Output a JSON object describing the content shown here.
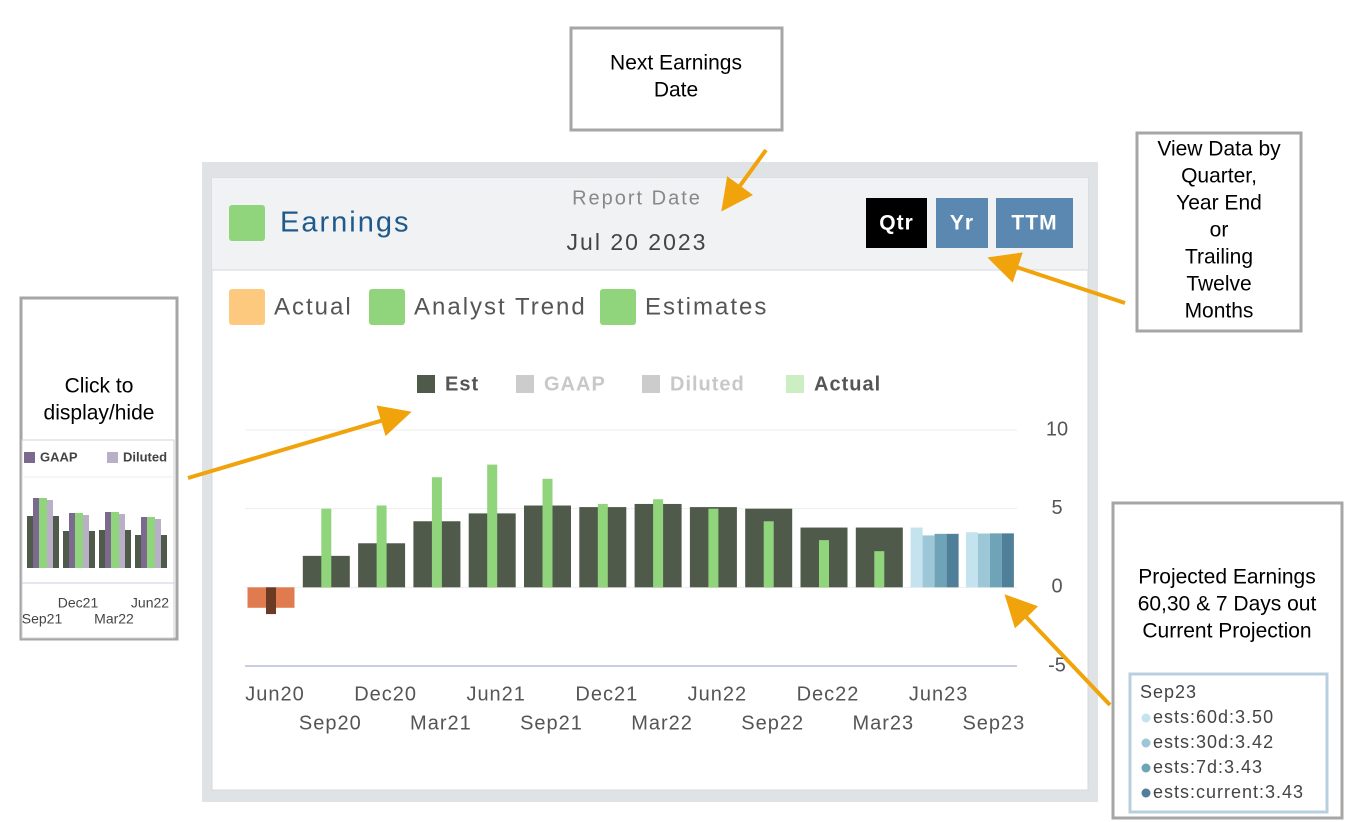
{
  "callouts": {
    "next_earnings": [
      "Next Earnings",
      "Date"
    ],
    "view_data": [
      "View Data by",
      "Quarter,",
      "Year End",
      "or",
      "Trailing",
      "Twelve",
      "Months"
    ],
    "click_toggle": [
      "Click to",
      "display/hide"
    ],
    "projected": [
      "Projected Earnings",
      "60,30 & 7 Days out",
      "Current Projection"
    ]
  },
  "widget": {
    "title": "Earnings",
    "report_date_label": "Report Date",
    "report_date": "Jul 20 2023",
    "buttons": [
      "Qtr",
      "Yr",
      "TTM"
    ],
    "legend": [
      {
        "label": "Actual",
        "color": "#fdc97e"
      },
      {
        "label": "Analyst Trend",
        "color": "#90d47c"
      },
      {
        "label": "Estimates",
        "color": "#90d47c"
      }
    ]
  },
  "inset": {
    "legend": [
      "GAAP",
      "Diluted"
    ],
    "labels": [
      "Dec21",
      "Jun22",
      "Sep21",
      "Mar22"
    ]
  },
  "tooltip": [
    "Sep23",
    "ests:60d:3.50",
    "ests:30d:3.42",
    "ests:7d:3.43",
    "ests:current:3.43"
  ],
  "chart_data": {
    "type": "bar",
    "categories": [
      "Jun20",
      "Sep20",
      "Dec20",
      "Mar21",
      "Jun21",
      "Sep21",
      "Dec21",
      "Mar22",
      "Jun22",
      "Sep22",
      "Dec22",
      "Mar23",
      "Jun23",
      "Sep23"
    ],
    "series": [
      {
        "name": "Est",
        "color": "#4f5a4a",
        "negative_color": "#e07b4f",
        "visible": true,
        "values": [
          -1.3,
          2.0,
          2.8,
          4.2,
          4.7,
          5.2,
          5.1,
          5.3,
          5.1,
          5.0,
          3.8,
          3.8,
          null,
          null
        ]
      },
      {
        "name": "GAAP",
        "color": "#cccccc",
        "visible": false,
        "values": [
          null,
          null,
          null,
          null,
          null,
          null,
          null,
          null,
          null,
          null,
          null,
          null,
          null,
          null
        ]
      },
      {
        "name": "Diluted",
        "color": "#cccccc",
        "visible": false,
        "values": [
          null,
          null,
          null,
          null,
          null,
          null,
          null,
          null,
          null,
          null,
          null,
          null,
          null,
          null
        ]
      },
      {
        "name": "Actual",
        "color": "#90d47c",
        "negative_color": "#6b3a25",
        "visible": true,
        "values": [
          -1.7,
          5.0,
          5.2,
          7.0,
          7.8,
          6.9,
          5.3,
          5.6,
          5.0,
          4.2,
          3.0,
          2.3,
          null,
          null
        ]
      }
    ],
    "projection_series": [
      {
        "color": "#c5e3ee",
        "values": [
          null,
          null,
          null,
          null,
          null,
          null,
          null,
          null,
          null,
          null,
          null,
          null,
          3.8,
          3.5
        ]
      },
      {
        "color": "#9cc7d6",
        "values": [
          null,
          null,
          null,
          null,
          null,
          null,
          null,
          null,
          null,
          null,
          null,
          null,
          3.3,
          3.42
        ]
      },
      {
        "color": "#6fa3b8",
        "values": [
          null,
          null,
          null,
          null,
          null,
          null,
          null,
          null,
          null,
          null,
          null,
          null,
          3.4,
          3.43
        ]
      },
      {
        "color": "#4f7f99",
        "values": [
          null,
          null,
          null,
          null,
          null,
          null,
          null,
          null,
          null,
          null,
          null,
          null,
          3.4,
          3.43
        ]
      }
    ],
    "ylim": [
      -5,
      10
    ],
    "yticks": [
      -5,
      0,
      5,
      10
    ],
    "y_axis_side": "right",
    "grid": true
  }
}
